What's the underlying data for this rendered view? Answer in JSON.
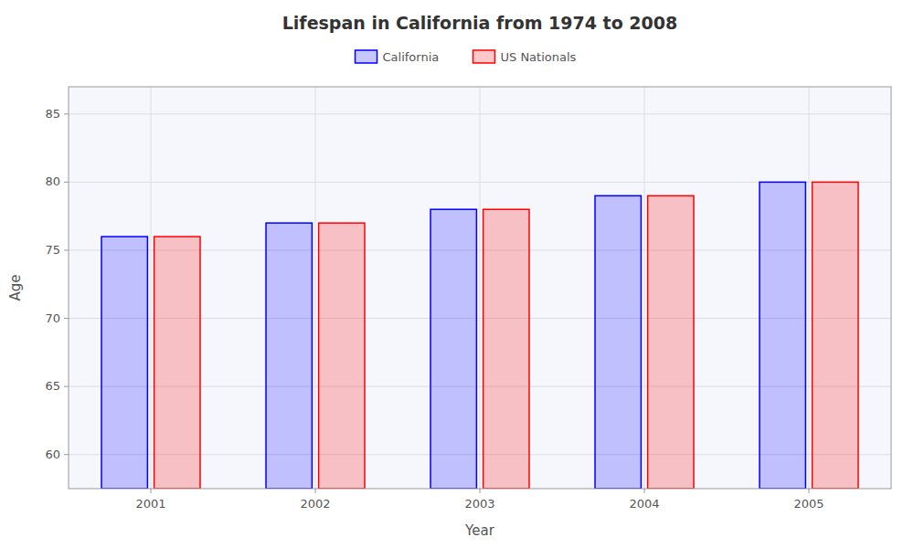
{
  "chart_data": {
    "type": "bar",
    "title": "Lifespan in California from 1974 to 2008",
    "x_label": "Year",
    "y_label": "Age",
    "categories": [
      "2001",
      "2002",
      "2003",
      "2004",
      "2005"
    ],
    "series": [
      {
        "name": "California",
        "color": "#0000ff",
        "values": [
          76,
          77,
          78,
          79,
          80
        ]
      },
      {
        "name": "US Nationals",
        "color": "#ff0000",
        "values": [
          76,
          77,
          78,
          79,
          80
        ]
      }
    ],
    "ylim": [
      57.5,
      87
    ],
    "yticks": [
      60,
      65,
      70,
      75,
      80,
      85
    ],
    "grid": true,
    "legend": "top"
  }
}
